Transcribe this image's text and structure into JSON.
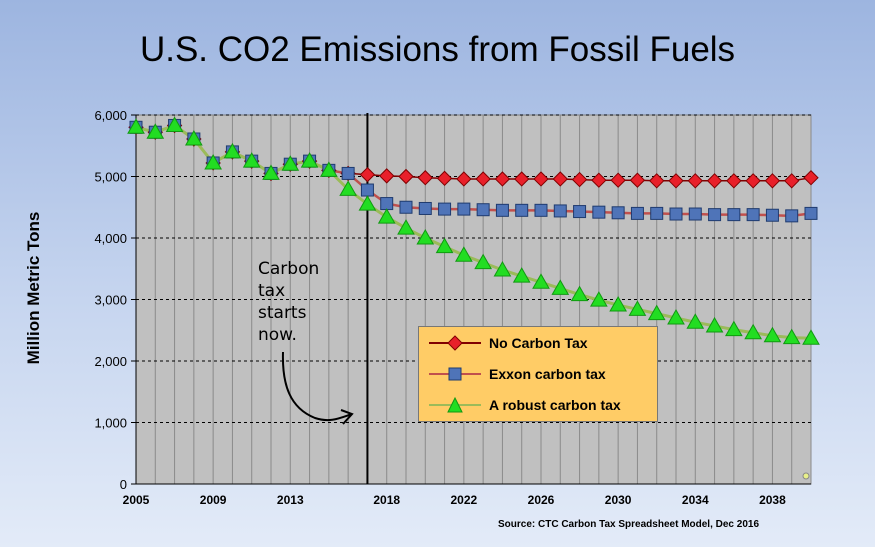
{
  "title": "U.S. CO2 Emissions from Fossil Fuels",
  "source": "Source: CTC Carbon Tax Spreadsheet Model, Dec 2016",
  "annotation": {
    "lines": [
      "Carbon",
      "tax",
      "starts",
      "now."
    ]
  },
  "colors": {
    "no_tax": "#e8202a",
    "exxon": "#4f74b8",
    "robust": "#22dd22",
    "robust_line": "#9bbb59",
    "plot_bg": "#c0c0c0"
  },
  "chart_data": {
    "type": "line",
    "title": "U.S. CO2 Emissions from Fossil Fuels",
    "xlabel": "",
    "ylabel": "Million Metric Tons",
    "xlim": [
      2005,
      2040
    ],
    "ylim": [
      0,
      6000
    ],
    "y_ticks": [
      "0",
      "1,000",
      "2,000",
      "3,000",
      "4,000",
      "5,000",
      "6,000"
    ],
    "x_ticks": [
      2005,
      2009,
      2013,
      2018,
      2022,
      2026,
      2030,
      2034,
      2038
    ],
    "vertical_marker_year": 2017,
    "grid": true,
    "legend_position": "center-right",
    "x": [
      2005,
      2006,
      2007,
      2008,
      2009,
      2010,
      2011,
      2012,
      2013,
      2014,
      2015,
      2016,
      2017,
      2018,
      2019,
      2020,
      2021,
      2022,
      2023,
      2024,
      2025,
      2026,
      2027,
      2028,
      2029,
      2030,
      2031,
      2032,
      2033,
      2034,
      2035,
      2036,
      2037,
      2038,
      2039,
      2040
    ],
    "series": [
      {
        "name": "No Carbon Tax",
        "marker": "diamond",
        "values": [
          5800,
          5720,
          5830,
          5610,
          5220,
          5400,
          5250,
          5050,
          5200,
          5250,
          5100,
          5050,
          5030,
          5010,
          5000,
          4980,
          4970,
          4960,
          4960,
          4960,
          4960,
          4960,
          4960,
          4950,
          4940,
          4940,
          4940,
          4930,
          4930,
          4930,
          4930,
          4930,
          4930,
          4930,
          4930,
          4980
        ]
      },
      {
        "name": "Exxon carbon tax",
        "marker": "square",
        "values": [
          5800,
          5720,
          5830,
          5610,
          5220,
          5400,
          5250,
          5050,
          5200,
          5250,
          5100,
          5050,
          4780,
          4560,
          4500,
          4480,
          4470,
          4470,
          4460,
          4450,
          4450,
          4450,
          4440,
          4430,
          4420,
          4410,
          4400,
          4400,
          4390,
          4390,
          4380,
          4380,
          4380,
          4370,
          4360,
          4400
        ]
      },
      {
        "name": "A robust carbon tax",
        "marker": "triangle",
        "values": [
          5800,
          5720,
          5830,
          5610,
          5220,
          5400,
          5250,
          5050,
          5200,
          5250,
          5100,
          4790,
          4550,
          4340,
          4160,
          4000,
          3860,
          3720,
          3600,
          3480,
          3380,
          3280,
          3180,
          3080,
          2990,
          2910,
          2840,
          2770,
          2700,
          2630,
          2570,
          2510,
          2460,
          2410,
          2380,
          2370
        ]
      }
    ]
  }
}
